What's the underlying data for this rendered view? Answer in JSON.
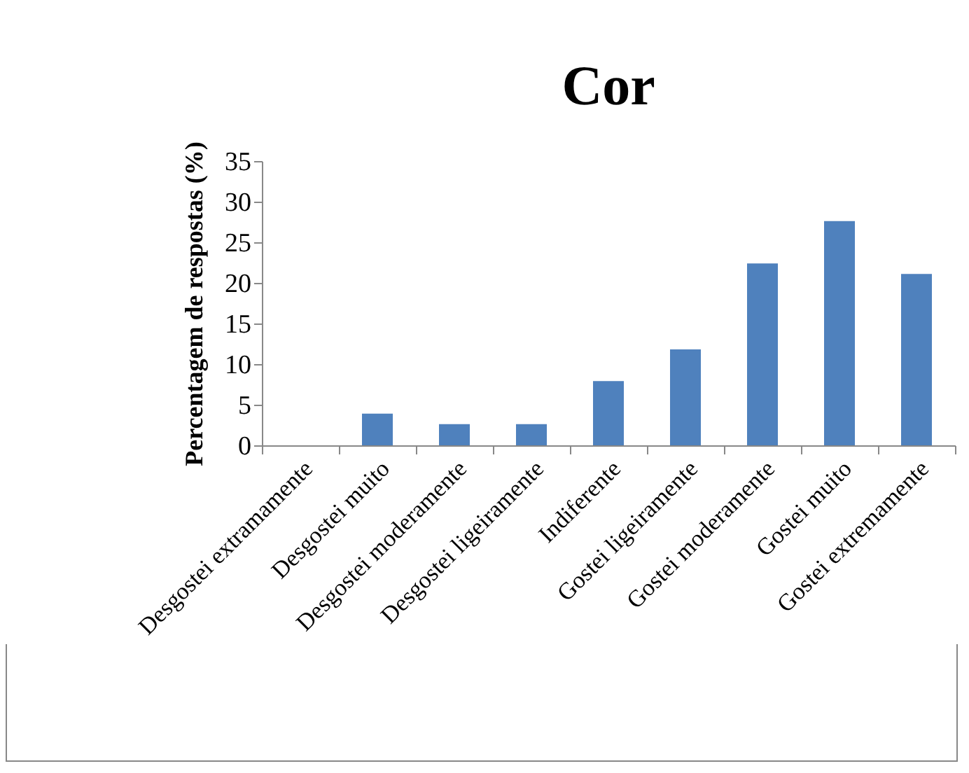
{
  "chart_data": {
    "type": "bar",
    "title": "Cor",
    "ylabel": "Percentagem de respostas (%)",
    "categories": [
      "Desgostei extramamente",
      "Desgostei muito",
      "Desgostei moderamente",
      "Desgostei ligeiramente",
      "Indiferente",
      "Gostei ligeiramente",
      "Gostei moderamente",
      "Gostei muito",
      "Gostei extremamente"
    ],
    "values": [
      0,
      3.9,
      2.6,
      2.6,
      7.9,
      11.8,
      22.4,
      27.6,
      21.1
    ],
    "color": "#4f81bd",
    "ylim": [
      0,
      35
    ],
    "yticks": [
      0,
      5,
      10,
      15,
      20,
      25,
      30,
      35
    ],
    "grid": false
  }
}
